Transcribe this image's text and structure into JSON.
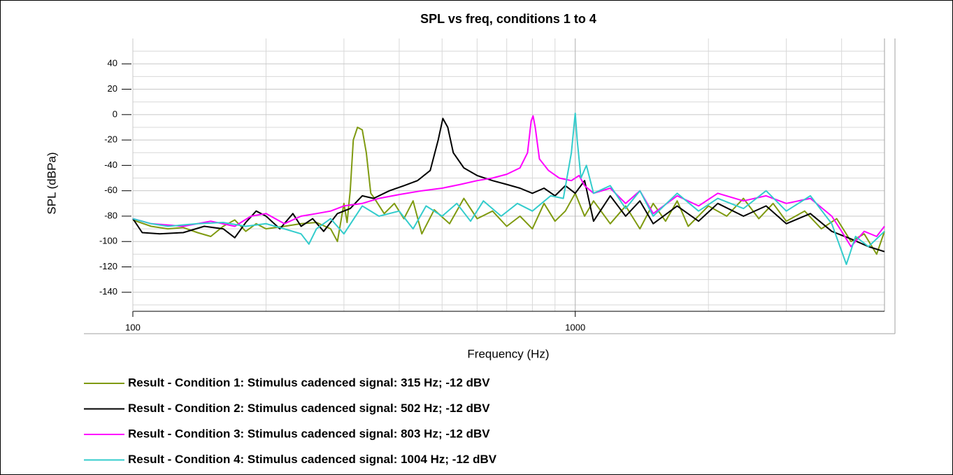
{
  "chart_data": {
    "type": "line",
    "title": "SPL vs freq, conditions 1 to 4",
    "xlabel": "Frequency (Hz)",
    "ylabel": "SPL (dBPa)",
    "xscale": "log",
    "xlim": [
      100,
      5000
    ],
    "xticks": [
      100,
      1000
    ],
    "xminor": [
      200,
      300,
      400,
      500,
      600,
      700,
      800,
      900,
      2000,
      3000,
      4000
    ],
    "ylim": [
      -155,
      60
    ],
    "yticks": [
      40,
      20,
      0,
      -20,
      -40,
      -60,
      -80,
      -100,
      -120,
      -140
    ],
    "yminor": [
      50,
      30,
      10,
      -10,
      -30,
      -50,
      -70,
      -90,
      -110,
      -130,
      -150
    ],
    "grid": true,
    "legend": "bottom-left",
    "series": [
      {
        "name": "Result - Condition 1: Stimulus cadenced signal: 315 Hz; -12 dBV",
        "color": "#7f9a10",
        "x": [
          100,
          110,
          120,
          130,
          140,
          150,
          160,
          170,
          180,
          190,
          200,
          220,
          240,
          260,
          280,
          290,
          300,
          305,
          310,
          315,
          322,
          330,
          337,
          345,
          350,
          370,
          390,
          410,
          430,
          450,
          480,
          520,
          560,
          600,
          650,
          700,
          750,
          800,
          850,
          900,
          950,
          1000,
          1050,
          1100,
          1200,
          1300,
          1400,
          1500,
          1600,
          1700,
          1800,
          2000,
          2200,
          2400,
          2600,
          2800,
          3000,
          3300,
          3600,
          3900,
          4200,
          4500,
          4800,
          5000
        ],
        "values": [
          -83,
          -88,
          -90,
          -89,
          -93,
          -96,
          -88,
          -83,
          -92,
          -86,
          -90,
          -88,
          -86,
          -85,
          -90,
          -100,
          -70,
          -85,
          -60,
          -20,
          -10,
          -12,
          -30,
          -62,
          -65,
          -78,
          -70,
          -82,
          -68,
          -94,
          -75,
          -86,
          -66,
          -82,
          -76,
          -88,
          -80,
          -90,
          -70,
          -84,
          -76,
          -62,
          -80,
          -68,
          -86,
          -72,
          -90,
          -70,
          -84,
          -68,
          -88,
          -72,
          -80,
          -66,
          -82,
          -70,
          -84,
          -76,
          -90,
          -82,
          -100,
          -94,
          -110,
          -92
        ]
      },
      {
        "name": "Result - Condition 2: Stimulus cadenced signal: 502 Hz; -12 dBV",
        "color": "#000000",
        "x": [
          100,
          105,
          115,
          130,
          145,
          160,
          170,
          180,
          190,
          200,
          215,
          230,
          240,
          255,
          270,
          290,
          310,
          330,
          350,
          380,
          410,
          440,
          470,
          490,
          502,
          515,
          530,
          560,
          600,
          650,
          700,
          750,
          800,
          850,
          900,
          950,
          1000,
          1050,
          1100,
          1200,
          1300,
          1400,
          1500,
          1700,
          1900,
          2100,
          2400,
          2700,
          3000,
          3400,
          3800,
          4200,
          4600,
          5000
        ],
        "values": [
          -82,
          -93,
          -94,
          -93,
          -88,
          -90,
          -97,
          -85,
          -76,
          -80,
          -90,
          -78,
          -88,
          -82,
          -92,
          -78,
          -74,
          -64,
          -66,
          -60,
          -56,
          -52,
          -44,
          -20,
          -3,
          -10,
          -30,
          -42,
          -48,
          -52,
          -55,
          -58,
          -62,
          -58,
          -64,
          -56,
          -62,
          -52,
          -84,
          -64,
          -80,
          -68,
          -86,
          -72,
          -84,
          -70,
          -80,
          -72,
          -86,
          -78,
          -92,
          -98,
          -104,
          -108
        ]
      },
      {
        "name": "Result - Condition 3: Stimulus cadenced signal: 803 Hz; -12 dBV",
        "color": "#ff00ff",
        "x": [
          100,
          110,
          130,
          150,
          170,
          185,
          200,
          220,
          240,
          260,
          280,
          300,
          330,
          360,
          400,
          450,
          500,
          550,
          600,
          650,
          700,
          750,
          780,
          795,
          803,
          812,
          830,
          870,
          920,
          980,
          1020,
          1050,
          1100,
          1200,
          1300,
          1400,
          1500,
          1700,
          1900,
          2100,
          2400,
          2700,
          3000,
          3400,
          3800,
          4000,
          4200,
          4500,
          4800,
          5000
        ],
        "values": [
          -82,
          -86,
          -88,
          -84,
          -88,
          -80,
          -78,
          -86,
          -80,
          -78,
          -76,
          -72,
          -70,
          -66,
          -63,
          -60,
          -58,
          -55,
          -52,
          -50,
          -47,
          -42,
          -30,
          -5,
          -1,
          -10,
          -35,
          -44,
          -50,
          -52,
          -48,
          -56,
          -62,
          -58,
          -70,
          -60,
          -78,
          -64,
          -72,
          -62,
          -68,
          -64,
          -70,
          -66,
          -80,
          -92,
          -104,
          -92,
          -96,
          -88
        ]
      },
      {
        "name": "Result - Condition 4: Stimulus cadenced signal: 1004 Hz; -12 dBV",
        "color": "#33cccc",
        "x": [
          100,
          110,
          120,
          140,
          160,
          180,
          200,
          220,
          240,
          250,
          260,
          280,
          300,
          330,
          360,
          400,
          430,
          460,
          500,
          540,
          580,
          620,
          680,
          740,
          800,
          880,
          940,
          980,
          1000,
          1010,
          1030,
          1060,
          1100,
          1200,
          1300,
          1400,
          1500,
          1700,
          1900,
          2100,
          2400,
          2700,
          3000,
          3400,
          3800,
          4100,
          4300,
          4600,
          5000
        ],
        "values": [
          -82,
          -86,
          -88,
          -86,
          -85,
          -88,
          -86,
          -90,
          -94,
          -102,
          -90,
          -82,
          -94,
          -72,
          -80,
          -76,
          -90,
          -72,
          -80,
          -70,
          -84,
          -68,
          -80,
          -70,
          -76,
          -64,
          -66,
          -30,
          1,
          -20,
          -50,
          -40,
          -62,
          -56,
          -74,
          -60,
          -80,
          -62,
          -76,
          -66,
          -74,
          -60,
          -76,
          -64,
          -86,
          -118,
          -96,
          -104,
          -92
        ]
      }
    ]
  }
}
